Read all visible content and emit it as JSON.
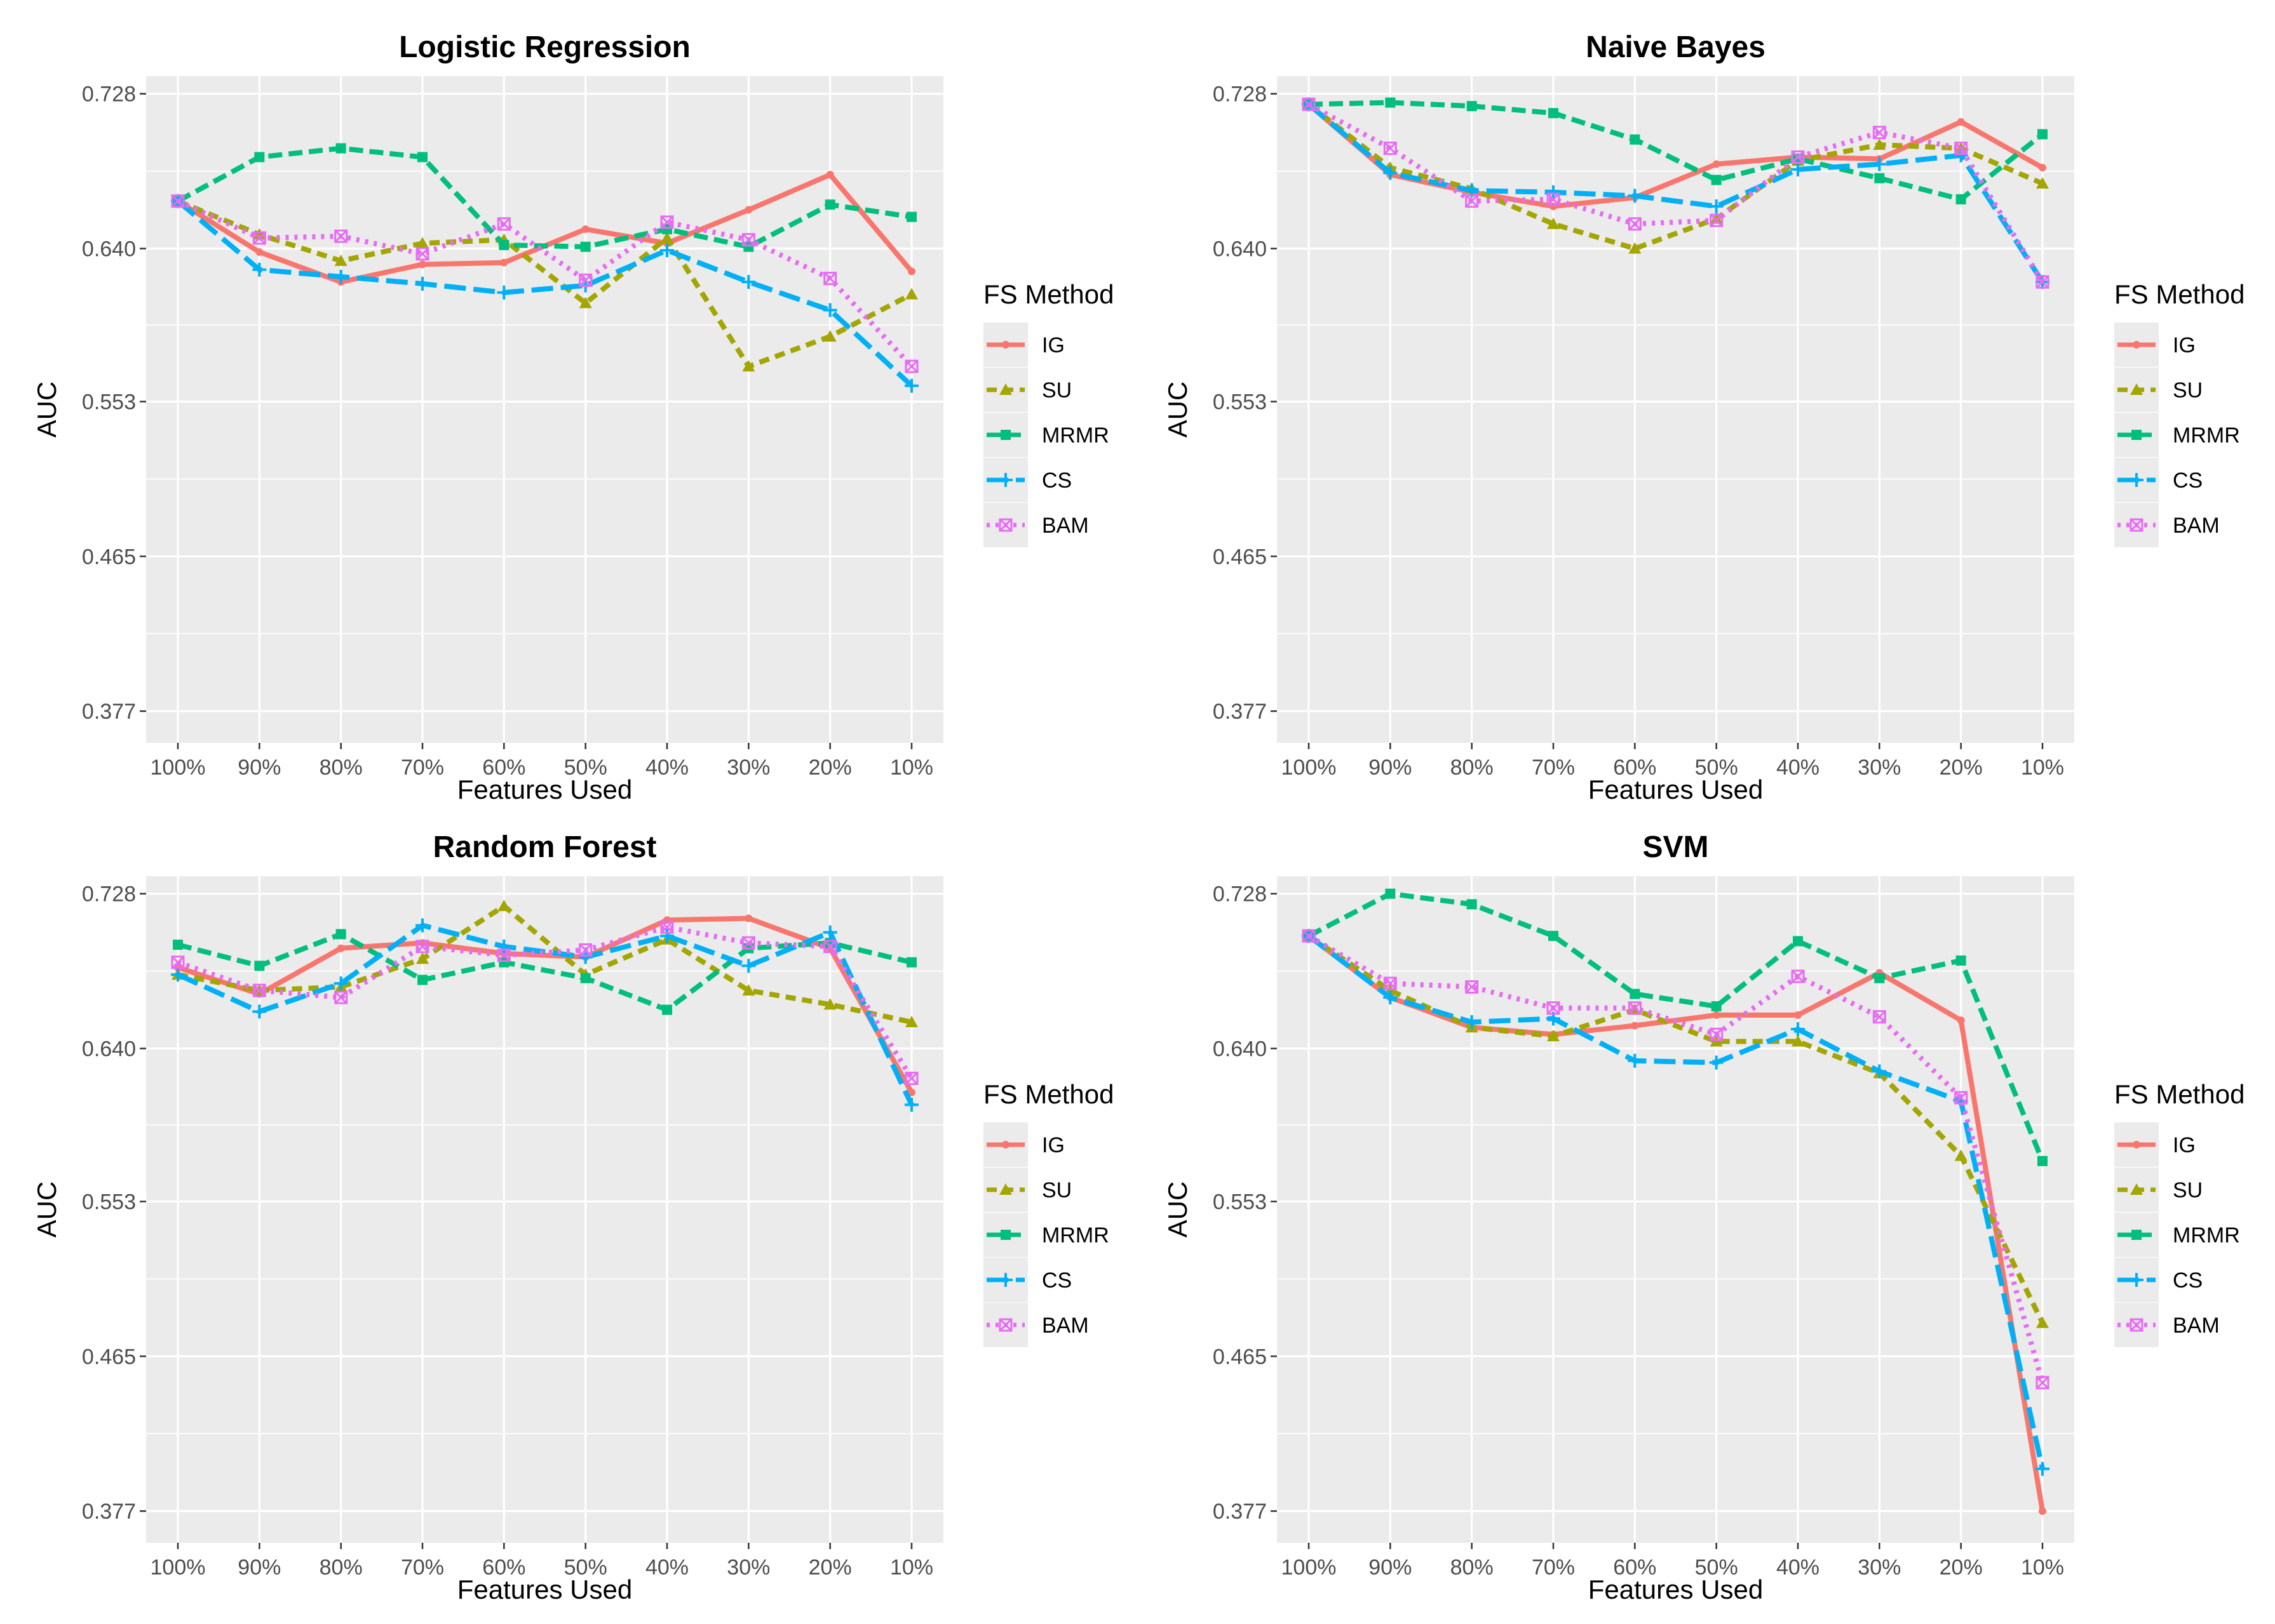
{
  "colors": {
    "IG": "#F8766D",
    "SU": "#A3A500",
    "MRMR": "#00BF7D",
    "CS": "#00B0F6",
    "BAM": "#E76BF3",
    "panel_bg": "#EBEBEB",
    "grid": "#FFFFFF"
  },
  "chart_data": [
    {
      "type": "line",
      "title": "Logistic Regression",
      "xlabel": "Features Used",
      "ylabel": "AUC",
      "categories": [
        "100%",
        "90%",
        "80%",
        "70%",
        "60%",
        "50%",
        "40%",
        "30%",
        "20%",
        "10%"
      ],
      "yticks": [
        "0.377",
        "0.465",
        "0.553",
        "0.640",
        "0.728"
      ],
      "ylim": [
        0.359,
        0.738
      ],
      "legend_title": "FS Method",
      "series": [
        {
          "name": "IG",
          "values": [
            0.667,
            0.638,
            0.621,
            0.631,
            0.632,
            0.651,
            0.643,
            0.662,
            0.682,
            0.627
          ]
        },
        {
          "name": "SU",
          "values": [
            0.667,
            0.648,
            0.633,
            0.643,
            0.645,
            0.609,
            0.646,
            0.573,
            0.59,
            0.614
          ]
        },
        {
          "name": "MRMR",
          "values": [
            0.667,
            0.692,
            0.697,
            0.692,
            0.642,
            0.641,
            0.651,
            0.641,
            0.665,
            0.658
          ]
        },
        {
          "name": "CS",
          "values": [
            0.667,
            0.628,
            0.624,
            0.62,
            0.615,
            0.619,
            0.639,
            0.621,
            0.605,
            0.562
          ]
        },
        {
          "name": "BAM",
          "values": [
            0.667,
            0.646,
            0.647,
            0.637,
            0.654,
            0.622,
            0.655,
            0.645,
            0.623,
            0.573
          ]
        }
      ]
    },
    {
      "type": "line",
      "title": "Naive Bayes",
      "xlabel": "Features Used",
      "ylabel": "AUC",
      "categories": [
        "100%",
        "90%",
        "80%",
        "70%",
        "60%",
        "50%",
        "40%",
        "30%",
        "20%",
        "10%"
      ],
      "yticks": [
        "0.377",
        "0.465",
        "0.553",
        "0.640",
        "0.728"
      ],
      "ylim": [
        0.359,
        0.738
      ],
      "legend_title": "FS Method",
      "series": [
        {
          "name": "IG",
          "values": [
            0.722,
            0.682,
            0.672,
            0.664,
            0.669,
            0.688,
            0.692,
            0.691,
            0.712,
            0.686
          ]
        },
        {
          "name": "SU",
          "values": [
            0.722,
            0.686,
            0.674,
            0.654,
            0.64,
            0.657,
            0.69,
            0.699,
            0.697,
            0.677
          ]
        },
        {
          "name": "MRMR",
          "values": [
            0.722,
            0.723,
            0.721,
            0.717,
            0.702,
            0.679,
            0.691,
            0.68,
            0.668,
            0.705
          ]
        },
        {
          "name": "CS",
          "values": [
            0.722,
            0.683,
            0.673,
            0.672,
            0.67,
            0.664,
            0.685,
            0.688,
            0.693,
            0.621
          ]
        },
        {
          "name": "BAM",
          "values": [
            0.722,
            0.697,
            0.667,
            0.668,
            0.654,
            0.656,
            0.692,
            0.706,
            0.697,
            0.621
          ]
        }
      ]
    },
    {
      "type": "line",
      "title": "Random Forest",
      "xlabel": "Features Used",
      "ylabel": "AUC",
      "categories": [
        "100%",
        "90%",
        "80%",
        "70%",
        "60%",
        "50%",
        "40%",
        "30%",
        "20%",
        "10%"
      ],
      "yticks": [
        "0.377",
        "0.465",
        "0.553",
        "0.640",
        "0.728"
      ],
      "ylim": [
        0.359,
        0.738
      ],
      "legend_title": "FS Method",
      "series": [
        {
          "name": "IG",
          "values": [
            0.686,
            0.671,
            0.697,
            0.7,
            0.694,
            0.692,
            0.713,
            0.714,
            0.697,
            0.615
          ]
        },
        {
          "name": "SU",
          "values": [
            0.682,
            0.673,
            0.675,
            0.691,
            0.721,
            0.682,
            0.702,
            0.673,
            0.665,
            0.655
          ]
        },
        {
          "name": "MRMR",
          "values": [
            0.699,
            0.687,
            0.705,
            0.679,
            0.689,
            0.68,
            0.662,
            0.697,
            0.7,
            0.689
          ]
        },
        {
          "name": "CS",
          "values": [
            0.682,
            0.661,
            0.677,
            0.71,
            0.698,
            0.692,
            0.704,
            0.687,
            0.706,
            0.608
          ]
        },
        {
          "name": "BAM",
          "values": [
            0.689,
            0.673,
            0.669,
            0.698,
            0.693,
            0.696,
            0.709,
            0.7,
            0.698,
            0.623
          ]
        }
      ]
    },
    {
      "type": "line",
      "title": "SVM",
      "xlabel": "Features Used",
      "ylabel": "AUC",
      "categories": [
        "100%",
        "90%",
        "80%",
        "70%",
        "60%",
        "50%",
        "40%",
        "30%",
        "20%",
        "10%"
      ],
      "yticks": [
        "0.377",
        "0.465",
        "0.553",
        "0.640",
        "0.728"
      ],
      "ylim": [
        0.359,
        0.738
      ],
      "legend_title": "FS Method",
      "series": [
        {
          "name": "IG",
          "values": [
            0.704,
            0.669,
            0.652,
            0.648,
            0.653,
            0.659,
            0.659,
            0.683,
            0.656,
            0.377
          ]
        },
        {
          "name": "SU",
          "values": [
            0.704,
            0.673,
            0.652,
            0.647,
            0.662,
            0.644,
            0.644,
            0.626,
            0.579,
            0.484
          ]
        },
        {
          "name": "MRMR",
          "values": [
            0.704,
            0.728,
            0.722,
            0.704,
            0.671,
            0.664,
            0.701,
            0.68,
            0.69,
            0.576
          ]
        },
        {
          "name": "CS",
          "values": [
            0.704,
            0.669,
            0.655,
            0.657,
            0.633,
            0.632,
            0.651,
            0.627,
            0.61,
            0.401
          ]
        },
        {
          "name": "BAM",
          "values": [
            0.704,
            0.677,
            0.675,
            0.663,
            0.663,
            0.648,
            0.681,
            0.658,
            0.612,
            0.45
          ]
        }
      ]
    }
  ]
}
